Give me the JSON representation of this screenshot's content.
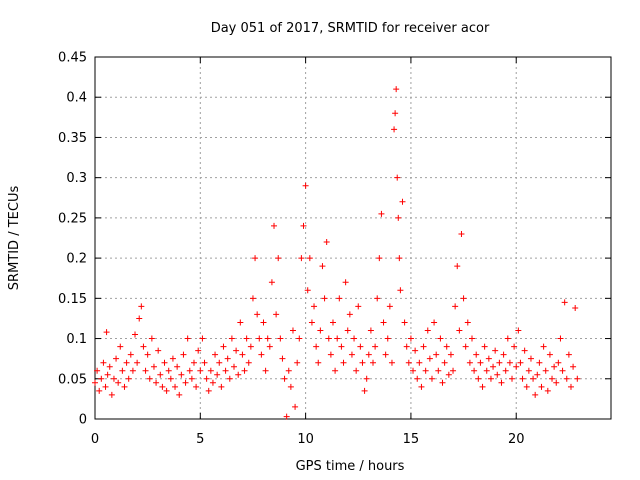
{
  "chart_data": {
    "type": "scatter",
    "title": "Day 051 of 2017, SRMTID for receiver acor",
    "xlabel": "GPS time / hours",
    "ylabel": "SRMTID / TECUs",
    "xlim": [
      0,
      24.5
    ],
    "ylim": [
      0,
      0.45
    ],
    "xticks": [
      0,
      5,
      10,
      15,
      20
    ],
    "xtick_labels": [
      "0",
      "5",
      "10",
      "15",
      "20"
    ],
    "yticks": [
      0,
      0.05,
      0.1,
      0.15,
      0.2,
      0.25,
      0.3,
      0.35,
      0.4,
      0.45
    ],
    "ytick_labels": [
      "0",
      "0.05",
      "0.1",
      "0.15",
      "0.2",
      "0.25",
      "0.3",
      "0.35",
      "0.4",
      "0.45"
    ],
    "grid": true,
    "marker": "+",
    "color": "#ff0000",
    "series": [
      {
        "name": "SRMTID",
        "points": [
          [
            0.0,
            0.045
          ],
          [
            0.1,
            0.06
          ],
          [
            0.2,
            0.035
          ],
          [
            0.3,
            0.05
          ],
          [
            0.4,
            0.07
          ],
          [
            0.5,
            0.04
          ],
          [
            0.55,
            0.108
          ],
          [
            0.6,
            0.055
          ],
          [
            0.7,
            0.065
          ],
          [
            0.8,
            0.03
          ],
          [
            0.9,
            0.05
          ],
          [
            1.0,
            0.075
          ],
          [
            1.1,
            0.045
          ],
          [
            1.2,
            0.09
          ],
          [
            1.3,
            0.06
          ],
          [
            1.4,
            0.04
          ],
          [
            1.5,
            0.07
          ],
          [
            1.6,
            0.05
          ],
          [
            1.7,
            0.08
          ],
          [
            1.8,
            0.06
          ],
          [
            1.9,
            0.105
          ],
          [
            2.0,
            0.07
          ],
          [
            2.1,
            0.125
          ],
          [
            2.2,
            0.14
          ],
          [
            2.3,
            0.09
          ],
          [
            2.4,
            0.06
          ],
          [
            2.5,
            0.08
          ],
          [
            2.6,
            0.05
          ],
          [
            2.7,
            0.1
          ],
          [
            2.8,
            0.065
          ],
          [
            2.9,
            0.045
          ],
          [
            3.0,
            0.085
          ],
          [
            3.1,
            0.055
          ],
          [
            3.2,
            0.04
          ],
          [
            3.3,
            0.07
          ],
          [
            3.4,
            0.035
          ],
          [
            3.5,
            0.06
          ],
          [
            3.6,
            0.05
          ],
          [
            3.7,
            0.075
          ],
          [
            3.8,
            0.04
          ],
          [
            3.9,
            0.065
          ],
          [
            4.0,
            0.03
          ],
          [
            4.1,
            0.055
          ],
          [
            4.2,
            0.08
          ],
          [
            4.3,
            0.045
          ],
          [
            4.4,
            0.1
          ],
          [
            4.5,
            0.06
          ],
          [
            4.6,
            0.05
          ],
          [
            4.7,
            0.07
          ],
          [
            4.8,
            0.04
          ],
          [
            4.9,
            0.085
          ],
          [
            5.0,
            0.06
          ],
          [
            5.1,
            0.1
          ],
          [
            5.2,
            0.07
          ],
          [
            5.3,
            0.05
          ],
          [
            5.4,
            0.035
          ],
          [
            5.5,
            0.06
          ],
          [
            5.6,
            0.045
          ],
          [
            5.7,
            0.08
          ],
          [
            5.8,
            0.055
          ],
          [
            5.9,
            0.07
          ],
          [
            6.0,
            0.04
          ],
          [
            6.1,
            0.09
          ],
          [
            6.2,
            0.06
          ],
          [
            6.3,
            0.075
          ],
          [
            6.4,
            0.05
          ],
          [
            6.5,
            0.1
          ],
          [
            6.6,
            0.065
          ],
          [
            6.7,
            0.085
          ],
          [
            6.8,
            0.055
          ],
          [
            6.9,
            0.12
          ],
          [
            7.0,
            0.08
          ],
          [
            7.1,
            0.06
          ],
          [
            7.2,
            0.1
          ],
          [
            7.3,
            0.07
          ],
          [
            7.4,
            0.09
          ],
          [
            7.5,
            0.15
          ],
          [
            7.6,
            0.2
          ],
          [
            7.7,
            0.13
          ],
          [
            7.8,
            0.1
          ],
          [
            7.9,
            0.08
          ],
          [
            8.0,
            0.12
          ],
          [
            8.1,
            0.06
          ],
          [
            8.2,
            0.1
          ],
          [
            8.3,
            0.09
          ],
          [
            8.4,
            0.17
          ],
          [
            8.5,
            0.24
          ],
          [
            8.6,
            0.13
          ],
          [
            8.7,
            0.2
          ],
          [
            8.8,
            0.1
          ],
          [
            8.9,
            0.075
          ],
          [
            9.0,
            0.05
          ],
          [
            9.1,
            0.003
          ],
          [
            9.2,
            0.06
          ],
          [
            9.3,
            0.04
          ],
          [
            9.4,
            0.11
          ],
          [
            9.5,
            0.015
          ],
          [
            9.6,
            0.07
          ],
          [
            9.7,
            0.1
          ],
          [
            9.8,
            0.2
          ],
          [
            9.9,
            0.24
          ],
          [
            10.0,
            0.29
          ],
          [
            10.1,
            0.16
          ],
          [
            10.2,
            0.2
          ],
          [
            10.3,
            0.12
          ],
          [
            10.4,
            0.14
          ],
          [
            10.5,
            0.09
          ],
          [
            10.6,
            0.07
          ],
          [
            10.7,
            0.11
          ],
          [
            10.8,
            0.19
          ],
          [
            10.9,
            0.15
          ],
          [
            11.0,
            0.22
          ],
          [
            11.1,
            0.1
          ],
          [
            11.2,
            0.08
          ],
          [
            11.3,
            0.12
          ],
          [
            11.4,
            0.06
          ],
          [
            11.5,
            0.1
          ],
          [
            11.6,
            0.15
          ],
          [
            11.7,
            0.09
          ],
          [
            11.8,
            0.07
          ],
          [
            11.9,
            0.17
          ],
          [
            12.0,
            0.11
          ],
          [
            12.1,
            0.13
          ],
          [
            12.2,
            0.08
          ],
          [
            12.3,
            0.1
          ],
          [
            12.4,
            0.06
          ],
          [
            12.5,
            0.14
          ],
          [
            12.6,
            0.09
          ],
          [
            12.7,
            0.07
          ],
          [
            12.8,
            0.035
          ],
          [
            12.9,
            0.05
          ],
          [
            13.0,
            0.08
          ],
          [
            13.1,
            0.11
          ],
          [
            13.2,
            0.07
          ],
          [
            13.3,
            0.09
          ],
          [
            13.4,
            0.15
          ],
          [
            13.5,
            0.2
          ],
          [
            13.6,
            0.255
          ],
          [
            13.7,
            0.12
          ],
          [
            13.8,
            0.08
          ],
          [
            13.9,
            0.1
          ],
          [
            14.0,
            0.14
          ],
          [
            14.1,
            0.07
          ],
          [
            14.2,
            0.36
          ],
          [
            14.25,
            0.38
          ],
          [
            14.3,
            0.41
          ],
          [
            14.35,
            0.3
          ],
          [
            14.4,
            0.25
          ],
          [
            14.45,
            0.2
          ],
          [
            14.5,
            0.16
          ],
          [
            14.6,
            0.27
          ],
          [
            14.7,
            0.12
          ],
          [
            14.8,
            0.09
          ],
          [
            14.9,
            0.07
          ],
          [
            15.0,
            0.1
          ],
          [
            15.1,
            0.06
          ],
          [
            15.2,
            0.085
          ],
          [
            15.3,
            0.05
          ],
          [
            15.4,
            0.07
          ],
          [
            15.5,
            0.04
          ],
          [
            15.6,
            0.09
          ],
          [
            15.7,
            0.06
          ],
          [
            15.8,
            0.11
          ],
          [
            15.9,
            0.075
          ],
          [
            16.0,
            0.05
          ],
          [
            16.1,
            0.12
          ],
          [
            16.2,
            0.08
          ],
          [
            16.3,
            0.06
          ],
          [
            16.4,
            0.1
          ],
          [
            16.5,
            0.045
          ],
          [
            16.6,
            0.07
          ],
          [
            16.7,
            0.09
          ],
          [
            16.8,
            0.055
          ],
          [
            16.9,
            0.08
          ],
          [
            17.0,
            0.06
          ],
          [
            17.1,
            0.14
          ],
          [
            17.2,
            0.19
          ],
          [
            17.3,
            0.11
          ],
          [
            17.4,
            0.23
          ],
          [
            17.5,
            0.15
          ],
          [
            17.6,
            0.09
          ],
          [
            17.7,
            0.12
          ],
          [
            17.8,
            0.07
          ],
          [
            17.9,
            0.1
          ],
          [
            18.0,
            0.06
          ],
          [
            18.1,
            0.08
          ],
          [
            18.2,
            0.05
          ],
          [
            18.3,
            0.07
          ],
          [
            18.4,
            0.04
          ],
          [
            18.5,
            0.09
          ],
          [
            18.6,
            0.06
          ],
          [
            18.7,
            0.075
          ],
          [
            18.8,
            0.05
          ],
          [
            18.9,
            0.065
          ],
          [
            19.0,
            0.085
          ],
          [
            19.1,
            0.055
          ],
          [
            19.2,
            0.07
          ],
          [
            19.3,
            0.045
          ],
          [
            19.4,
            0.08
          ],
          [
            19.5,
            0.06
          ],
          [
            19.6,
            0.1
          ],
          [
            19.7,
            0.07
          ],
          [
            19.8,
            0.05
          ],
          [
            19.9,
            0.09
          ],
          [
            20.0,
            0.065
          ],
          [
            20.1,
            0.11
          ],
          [
            20.2,
            0.07
          ],
          [
            20.3,
            0.05
          ],
          [
            20.4,
            0.085
          ],
          [
            20.5,
            0.04
          ],
          [
            20.6,
            0.06
          ],
          [
            20.7,
            0.075
          ],
          [
            20.8,
            0.05
          ],
          [
            20.9,
            0.03
          ],
          [
            21.0,
            0.055
          ],
          [
            21.1,
            0.07
          ],
          [
            21.2,
            0.04
          ],
          [
            21.3,
            0.09
          ],
          [
            21.4,
            0.06
          ],
          [
            21.5,
            0.035
          ],
          [
            21.6,
            0.08
          ],
          [
            21.7,
            0.05
          ],
          [
            21.8,
            0.065
          ],
          [
            21.9,
            0.045
          ],
          [
            22.0,
            0.07
          ],
          [
            22.1,
            0.1
          ],
          [
            22.2,
            0.06
          ],
          [
            22.3,
            0.145
          ],
          [
            22.4,
            0.05
          ],
          [
            22.5,
            0.08
          ],
          [
            22.6,
            0.04
          ],
          [
            22.7,
            0.065
          ],
          [
            22.8,
            0.138
          ],
          [
            22.9,
            0.05
          ]
        ]
      }
    ]
  }
}
